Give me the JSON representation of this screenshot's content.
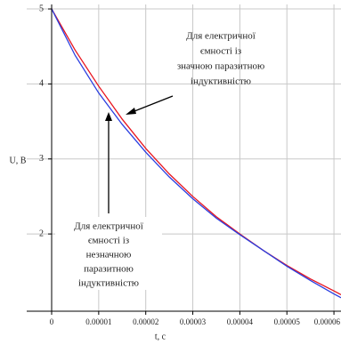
{
  "chart_data": {
    "type": "line",
    "x_label": "t, c",
    "y_label": "U, B",
    "x": [
      0,
      5e-06,
      1e-05,
      1.5e-05,
      2e-05,
      2.5e-05,
      3e-05,
      3.5e-05,
      4e-05,
      4.5e-05,
      5e-05,
      5.5e-05,
      6e-05,
      6.15e-05
    ],
    "series": [
      {
        "name": "Для електричної ємності із значною паразитною індуктивністю",
        "color": "#e8141e",
        "values": [
          5,
          4.45,
          3.97,
          3.53,
          3.14,
          2.8,
          2.5,
          2.23,
          2.0,
          1.78,
          1.58,
          1.4,
          1.24,
          1.19
        ]
      },
      {
        "name": "Для електричної ємності із незначною паразитною індуктивністю",
        "color": "#2a3ee0",
        "values": [
          5,
          4.38,
          3.88,
          3.46,
          3.09,
          2.76,
          2.47,
          2.21,
          1.99,
          1.78,
          1.57,
          1.38,
          1.2,
          1.15
        ]
      }
    ],
    "xlim": [
      -5.3e-06,
      6.15e-05
    ],
    "ylim": [
      0.97,
      5.06
    ],
    "xticks": [
      0,
      1e-05,
      2e-05,
      3e-05,
      4e-05,
      5e-05,
      6e-05
    ],
    "yticks": [
      2,
      3,
      4,
      5
    ],
    "grid": true,
    "annotations": [
      {
        "lines": [
          "Для електричної",
          "ємності із",
          "значною паразитною",
          "індуктивністю"
        ]
      },
      {
        "lines": [
          "Для електричної",
          "ємності із",
          "незначною",
          "паразитною",
          "індуктивністю"
        ]
      }
    ]
  }
}
